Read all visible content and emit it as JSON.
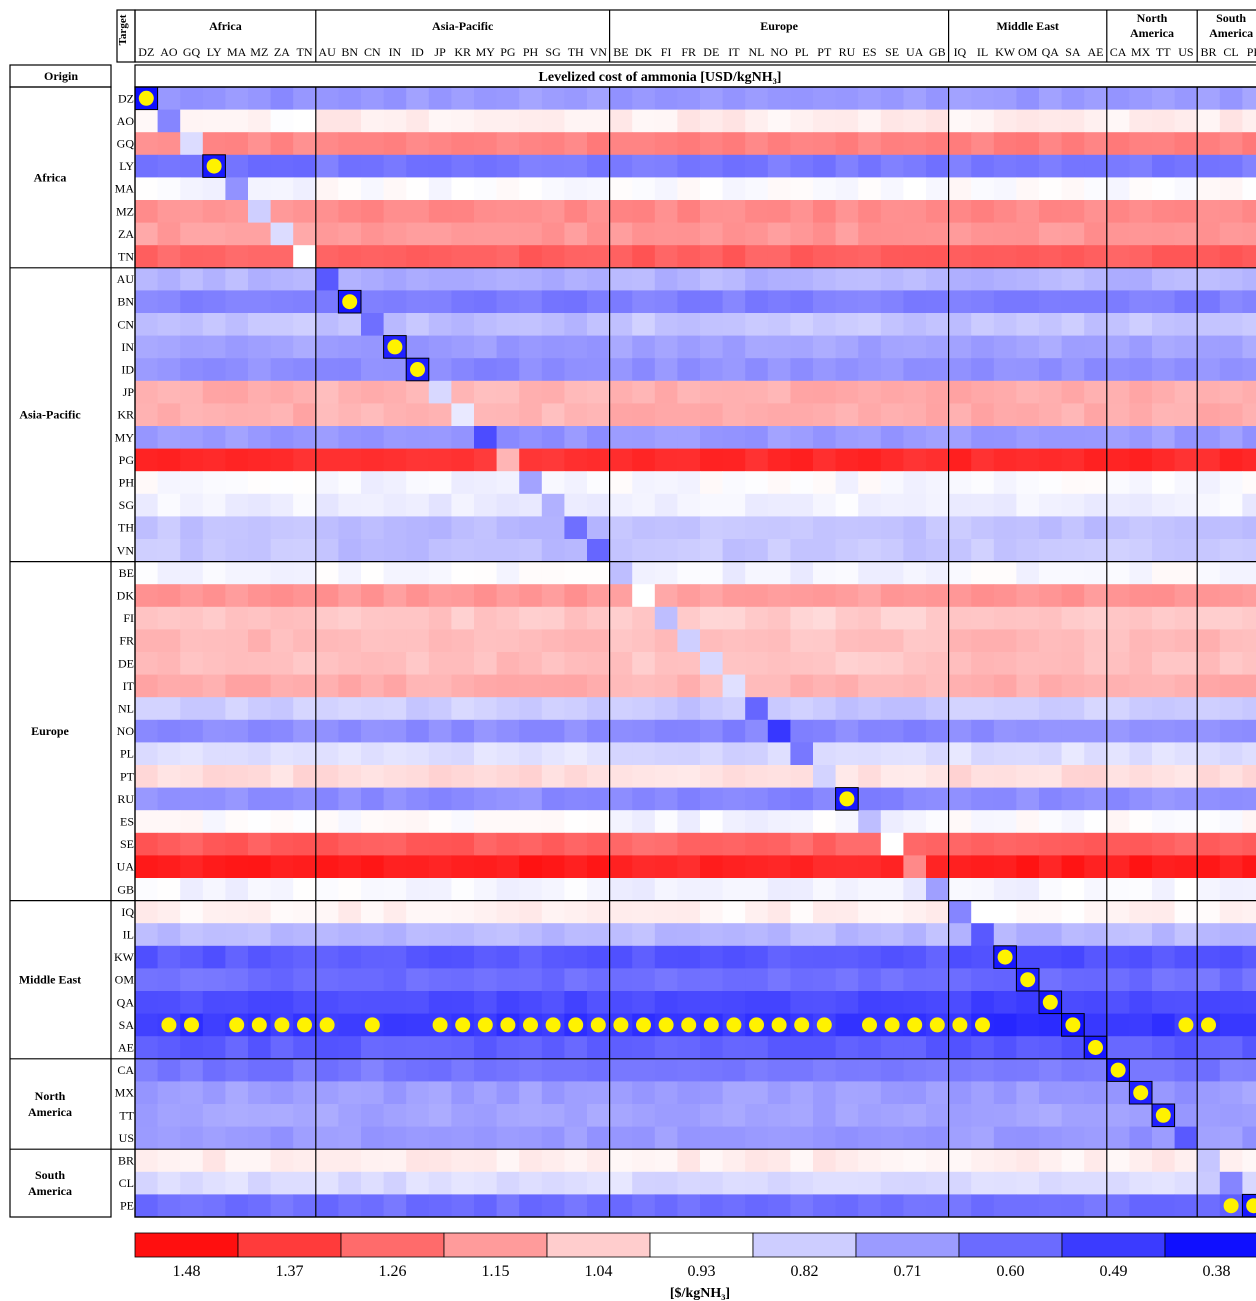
{
  "chart_data": {
    "type": "heatmap",
    "title": "Levelized cost of ammonia [USD/kgNH₃]",
    "row_axis_label": "Origin",
    "col_axis_label": "Target",
    "colorbar_label": "[$/kgNH₃]",
    "colorbar_ticks": [
      "1.48",
      "1.37",
      "1.26",
      "1.15",
      "1.04",
      "0.93",
      "0.82",
      "0.71",
      "0.60",
      "0.49",
      "0.38"
    ],
    "colorbar_colors": [
      "#ff0f0f",
      "#ff3b3b",
      "#ff6b6b",
      "#ff9b9b",
      "#ffcdcd",
      "#ffffff",
      "#cdcdff",
      "#9b9bff",
      "#6b6bff",
      "#3b3bff",
      "#0f0fff"
    ],
    "regions": [
      {
        "name": "Africa",
        "row_label": "Africa",
        "col_label": "Africa",
        "codes": [
          "DZ",
          "AO",
          "GQ",
          "LY",
          "MA",
          "MZ",
          "ZA",
          "TN"
        ]
      },
      {
        "name": "Asia-Pacific",
        "row_label": "Asia-Pacific",
        "col_label": "Asia-Pacific",
        "codes": [
          "AU",
          "BN",
          "CN",
          "IN",
          "ID",
          "JP",
          "KR",
          "MY",
          "PG",
          "PH",
          "SG",
          "TH",
          "VN"
        ]
      },
      {
        "name": "Europe",
        "row_label": "Europe",
        "col_label": "Europe",
        "codes": [
          "BE",
          "DK",
          "FI",
          "FR",
          "DE",
          "IT",
          "NL",
          "NO",
          "PL",
          "PT",
          "RU",
          "ES",
          "SE",
          "UA",
          "GB"
        ]
      },
      {
        "name": "Middle East",
        "row_label": "Middle East",
        "col_label": "Middle East",
        "codes": [
          "IQ",
          "IL",
          "KW",
          "OM",
          "QA",
          "SA",
          "AE"
        ]
      },
      {
        "name": "North America",
        "row_label": "North\nAmerica",
        "col_label": "North\nAmerica",
        "codes": [
          "CA",
          "MX",
          "TT",
          "US"
        ]
      },
      {
        "name": "South America",
        "row_label": "South\nAmerica",
        "col_label": "South\nAmerica",
        "codes": [
          "BR",
          "CL",
          "PE"
        ]
      }
    ],
    "origin_base_cost": {
      "DZ": 0.7,
      "AO": 0.97,
      "GQ": 1.22,
      "LY": 0.62,
      "MA": 0.93,
      "MZ": 1.2,
      "ZA": 1.17,
      "TN": 1.3,
      "AU": 0.76,
      "BN": 0.64,
      "CN": 0.8,
      "IN": 0.72,
      "ID": 0.68,
      "JP": 1.12,
      "KR": 1.12,
      "MY": 0.7,
      "PG": 1.42,
      "PH": 0.92,
      "SG": 0.9,
      "TH": 0.79,
      "VN": 0.8,
      "BE": 0.92,
      "DK": 1.17,
      "FI": 1.06,
      "FR": 1.09,
      "DE": 1.08,
      "IT": 1.12,
      "NL": 0.82,
      "NO": 0.67,
      "PL": 0.86,
      "PT": 1.01,
      "RU": 0.67,
      "ES": 0.93,
      "SE": 1.3,
      "UA": 1.45,
      "GB": 0.91,
      "IQ": 0.96,
      "IL": 0.77,
      "KW": 0.55,
      "OM": 0.6,
      "QA": 0.52,
      "SA": 0.47,
      "AE": 0.56,
      "CA": 0.62,
      "MX": 0.71,
      "TT": 0.72,
      "US": 0.7,
      "BR": 0.97,
      "CL": 0.85,
      "PE": 0.6
    },
    "diagonal_cost": {
      "DZ": 0.38,
      "AO": 0.65,
      "GQ": 0.85,
      "LY": 0.4,
      "MA": 0.68,
      "MZ": 0.82,
      "ZA": 0.85,
      "TN": 0.93,
      "AU": 0.55,
      "BN": 0.4,
      "CN": 0.6,
      "IN": 0.42,
      "ID": 0.42,
      "JP": 0.84,
      "KR": 0.88,
      "MY": 0.52,
      "PG": 1.1,
      "PH": 0.72,
      "SG": 0.75,
      "TH": 0.6,
      "VN": 0.58,
      "BE": 0.78,
      "DK": 0.93,
      "FI": 0.78,
      "FR": 0.82,
      "DE": 0.84,
      "IT": 0.86,
      "NL": 0.58,
      "NO": 0.47,
      "PL": 0.62,
      "PT": 0.83,
      "RU": 0.4,
      "ES": 0.78,
      "SE": 0.93,
      "UA": 1.2,
      "GB": 0.71,
      "IQ": 0.65,
      "IL": 0.55,
      "KW": 0.4,
      "OM": 0.42,
      "QA": 0.4,
      "SA": 0.36,
      "AE": 0.4,
      "CA": 0.4,
      "MX": 0.42,
      "TT": 0.42,
      "US": 0.55,
      "BR": 0.8,
      "CL": 0.65,
      "PE": 0.4
    },
    "highlight_diagonal": [
      "DZ",
      "LY",
      "BN",
      "IN",
      "ID",
      "RU",
      "KW",
      "OM",
      "QA",
      "SA",
      "AE",
      "CA",
      "MX",
      "TT",
      "PE"
    ],
    "highlight_cells": [
      [
        "SA",
        "AO"
      ],
      [
        "SA",
        "GQ"
      ],
      [
        "SA",
        "MA"
      ],
      [
        "SA",
        "MZ"
      ],
      [
        "SA",
        "ZA"
      ],
      [
        "SA",
        "TN"
      ],
      [
        "SA",
        "AU"
      ],
      [
        "SA",
        "CN"
      ],
      [
        "SA",
        "JP"
      ],
      [
        "SA",
        "KR"
      ],
      [
        "SA",
        "MY"
      ],
      [
        "SA",
        "PG"
      ],
      [
        "SA",
        "PH"
      ],
      [
        "SA",
        "SG"
      ],
      [
        "SA",
        "TH"
      ],
      [
        "SA",
        "VN"
      ],
      [
        "SA",
        "BE"
      ],
      [
        "SA",
        "DK"
      ],
      [
        "SA",
        "FI"
      ],
      [
        "SA",
        "FR"
      ],
      [
        "SA",
        "DE"
      ],
      [
        "SA",
        "IT"
      ],
      [
        "SA",
        "NL"
      ],
      [
        "SA",
        "NO"
      ],
      [
        "SA",
        "PL"
      ],
      [
        "SA",
        "PT"
      ],
      [
        "SA",
        "ES"
      ],
      [
        "SA",
        "SE"
      ],
      [
        "SA",
        "UA"
      ],
      [
        "SA",
        "GB"
      ],
      [
        "SA",
        "IQ"
      ],
      [
        "SA",
        "IL"
      ],
      [
        "SA",
        "US"
      ],
      [
        "SA",
        "BR"
      ],
      [
        "PE",
        "CL"
      ]
    ]
  }
}
